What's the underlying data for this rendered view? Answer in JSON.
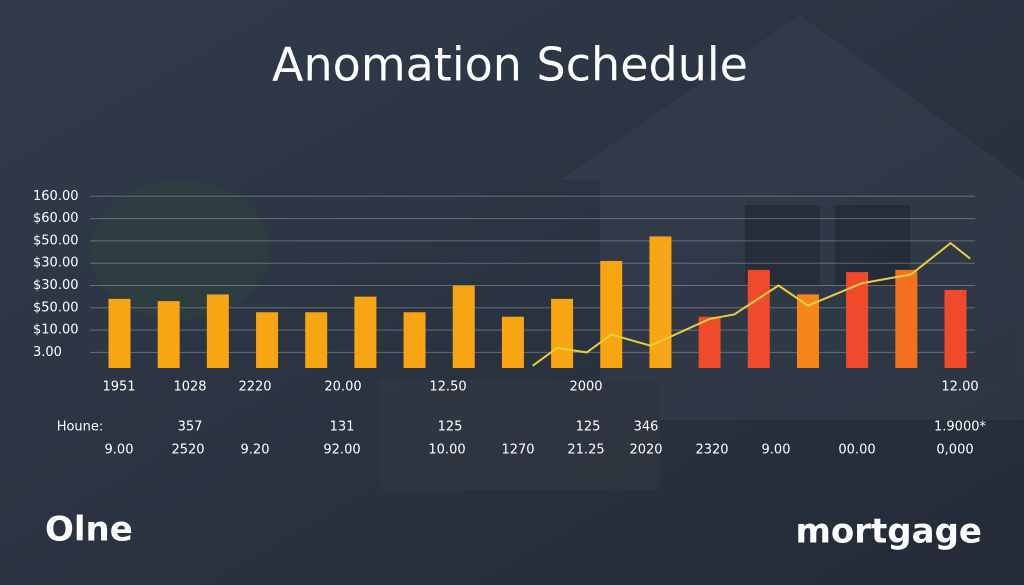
{
  "chart_data": {
    "type": "bar-line",
    "title": "Anomation Schedule",
    "ylim": [
      -0.7,
      7.3
    ],
    "yticks": [
      {
        "value": 7,
        "label": "160.00"
      },
      {
        "value": 6,
        "label": "$60.00"
      },
      {
        "value": 5,
        "label": "$50.00"
      },
      {
        "value": 4,
        "label": "$30.00"
      },
      {
        "value": 3,
        "label": "$30.00"
      },
      {
        "value": 2,
        "label": "$50.00"
      },
      {
        "value": 1,
        "label": "$10.00"
      },
      {
        "value": 0,
        "label": "3.00"
      }
    ],
    "grid": true,
    "xlim": [
      -0.6,
      17.6
    ],
    "categories": [
      null,
      null,
      null,
      null,
      null,
      null,
      null,
      null,
      null,
      null,
      null,
      null,
      null,
      null,
      null,
      null,
      null,
      null
    ],
    "series": [
      {
        "type": "bar",
        "colors": [
          "#f7a512",
          "#f7a512",
          "#f7a512",
          "#f7a512",
          "#f7a512",
          "#f7a512",
          "#f7a512",
          "#f7a512",
          "#f7a512",
          "#f7a512",
          "#f7a512",
          "#f7a512",
          "#ef4a2b",
          "#ef4a2b",
          "#f5861a",
          "#ef4a2b",
          "#f2701e",
          "#ef4a2b"
        ],
        "values": [
          2.4,
          2.3,
          2.6,
          1.8,
          1.8,
          2.5,
          1.8,
          3.0,
          1.6,
          2.4,
          4.1,
          5.2,
          1.6,
          3.7,
          2.6,
          3.6,
          3.7,
          2.8
        ]
      },
      {
        "type": "line",
        "color": "#e6cf3c",
        "x": [
          8.4,
          8.9,
          9.5,
          10.0,
          10.8,
          12.0,
          12.5,
          13.4,
          14.0,
          15.1,
          16.1,
          16.9,
          17.3
        ],
        "values": [
          -0.6,
          0.2,
          0.0,
          0.8,
          0.3,
          1.5,
          1.7,
          3.0,
          2.1,
          3.1,
          3.5,
          4.9,
          4.2
        ]
      }
    ],
    "label_rows": [
      [
        "1951",
        "1028",
        "2220",
        "20.00",
        "12.50",
        "2000",
        "12.00"
      ],
      [
        "Houne:",
        "357",
        "131",
        "125",
        "125",
        "346",
        "1.9000*"
      ],
      [
        "9.00",
        "2520",
        "9.20",
        "92.00",
        "10.00",
        "1270",
        "21.25",
        "2020",
        "2320",
        "9.00",
        "00.00",
        "0,000"
      ]
    ],
    "footer_left": "Olne",
    "footer_right": "mortgage"
  }
}
